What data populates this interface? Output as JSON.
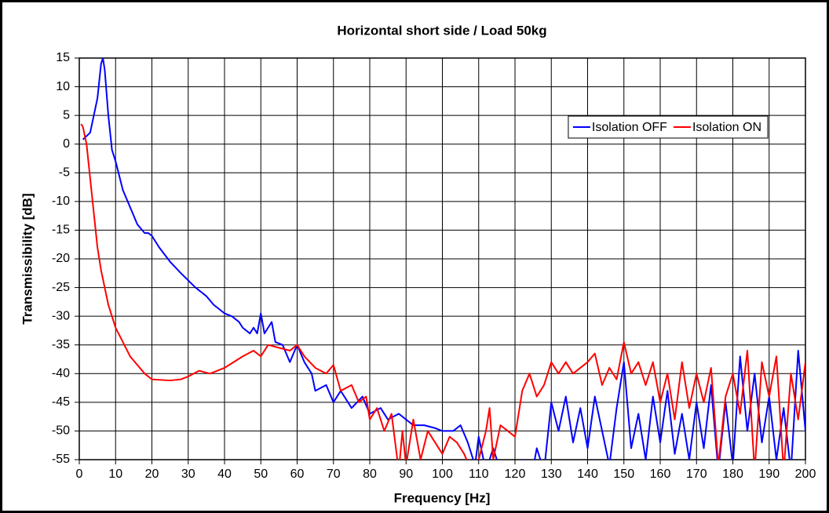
{
  "chart_data": {
    "type": "line",
    "title": "Horizontal short side / Load 50kg",
    "x_label": "Frequency [Hz]",
    "y_label": "Transmissibility [dB]",
    "xlim": [
      0,
      200
    ],
    "ylim": [
      -55,
      15
    ],
    "xticks": [
      0,
      10,
      20,
      30,
      40,
      50,
      60,
      70,
      80,
      90,
      100,
      110,
      120,
      130,
      140,
      150,
      160,
      170,
      180,
      190,
      200
    ],
    "yticks": [
      -55,
      -50,
      -45,
      -40,
      -35,
      -30,
      -25,
      -20,
      -15,
      -10,
      -5,
      0,
      5,
      10,
      15
    ],
    "grid": true,
    "legend": "upper right",
    "series": [
      {
        "name": "Isolation OFF",
        "color": "#0000ff",
        "x": [
          1,
          3,
          5,
          6,
          6.5,
          7,
          8,
          9,
          10,
          12,
          14,
          16,
          18,
          19,
          20,
          22,
          25,
          28,
          32,
          35,
          37,
          40,
          42,
          44,
          45,
          47,
          48,
          49,
          50,
          51,
          52,
          53,
          54,
          56,
          58,
          60,
          62,
          64,
          65,
          68,
          70,
          72,
          75,
          78,
          80,
          83,
          85,
          88,
          90,
          92,
          95,
          98,
          100,
          103,
          105,
          107,
          109,
          110,
          112,
          114,
          116,
          118,
          120,
          122,
          124,
          126,
          128,
          130,
          132,
          134,
          136,
          138,
          140,
          142,
          144,
          146,
          148,
          150,
          152,
          154,
          156,
          158,
          160,
          162,
          164,
          166,
          168,
          170,
          172,
          174,
          176,
          178,
          180,
          182,
          184,
          186,
          188,
          190,
          192,
          194,
          196,
          198,
          200
        ],
        "values": [
          0.8,
          2,
          8,
          14,
          15,
          13,
          5,
          -1,
          -3,
          -8,
          -11,
          -14,
          -15.5,
          -15.5,
          -16,
          -18,
          -20.5,
          -22.5,
          -25,
          -26.5,
          -28,
          -29.5,
          -30,
          -31,
          -32,
          -33,
          -32,
          -33,
          -29.5,
          -33,
          -32,
          -31,
          -34.5,
          -35,
          -38,
          -35,
          -38,
          -40,
          -43,
          -42,
          -45,
          -43,
          -46,
          -44,
          -47,
          -46,
          -48,
          -47,
          -48,
          -49,
          -49,
          -49.5,
          -50,
          -50,
          -49,
          -52,
          -56,
          -51,
          -57,
          -53,
          -57,
          -56,
          -58,
          -55,
          -60,
          -53,
          -57,
          -45,
          -50,
          -44,
          -52,
          -46,
          -53,
          -44,
          -50,
          -56,
          -46,
          -38,
          -53,
          -47,
          -55,
          -44,
          -52,
          -43,
          -54,
          -47,
          -55,
          -45,
          -53,
          -42,
          -57,
          -45,
          -56,
          -37,
          -50,
          -40,
          -52,
          -44,
          -55,
          -46,
          -57,
          -36,
          -50
        ]
      },
      {
        "name": "Isolation ON",
        "color": "#ff0000",
        "x": [
          0.5,
          1,
          2,
          3,
          4,
          5,
          6,
          7,
          8,
          9,
          10,
          12,
          14,
          16,
          18,
          20,
          25,
          28,
          30,
          33,
          36,
          40,
          45,
          48,
          50,
          52,
          55,
          58,
          60,
          62,
          65,
          68,
          70,
          72,
          75,
          77,
          79,
          80,
          82,
          84,
          86,
          88,
          89,
          90,
          92,
          94,
          96,
          98,
          100,
          102,
          104,
          106,
          108,
          110,
          112,
          113,
          114,
          116,
          118,
          120,
          122,
          124,
          126,
          128,
          130,
          132,
          134,
          136,
          138,
          140,
          142,
          144,
          146,
          148,
          150,
          152,
          154,
          156,
          158,
          160,
          162,
          164,
          166,
          168,
          170,
          172,
          174,
          176,
          178,
          180,
          182,
          184,
          186,
          188,
          190,
          192,
          194,
          196,
          198,
          200
        ],
        "values": [
          3.5,
          3,
          0,
          -6,
          -12,
          -18,
          -22,
          -25,
          -28,
          -30,
          -32,
          -34.5,
          -37,
          -38.5,
          -40,
          -41,
          -41.2,
          -41,
          -40.5,
          -39.5,
          -40,
          -39,
          -37,
          -36,
          -37,
          -35,
          -35.5,
          -36,
          -35,
          -37,
          -39,
          -40,
          -38.5,
          -43,
          -42,
          -45,
          -44,
          -48,
          -46,
          -50,
          -47,
          -57,
          -50,
          -56,
          -48,
          -55,
          -50,
          -52,
          -54,
          -51,
          -52,
          -54,
          -57,
          -55,
          -50,
          -46,
          -55,
          -49,
          -50,
          -51,
          -43,
          -40,
          -44,
          -42,
          -38,
          -40,
          -38,
          -40,
          -39,
          -38,
          -36.5,
          -42,
          -39,
          -41,
          -34.5,
          -40,
          -38,
          -42,
          -38,
          -45,
          -40,
          -48,
          -38,
          -46,
          -40,
          -45,
          -39,
          -56,
          -44,
          -40,
          -47,
          -36,
          -57,
          -38,
          -44,
          -37,
          -57,
          -40,
          -48,
          -38
        ]
      }
    ]
  }
}
